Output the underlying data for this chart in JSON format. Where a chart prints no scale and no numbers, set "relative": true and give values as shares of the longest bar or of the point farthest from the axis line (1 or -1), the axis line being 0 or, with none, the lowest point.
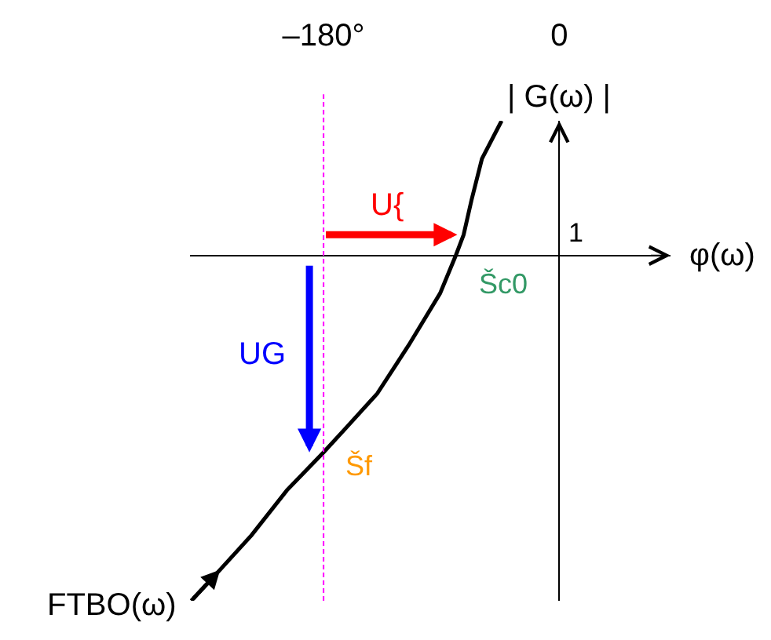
{
  "chart_data": {
    "type": "line",
    "xlabel": "φ(ω)",
    "ylabel": "| G(ω) |",
    "relative": true,
    "xlim": [
      -282,
      85
    ],
    "xticks": [
      {
        "value": -180,
        "label": "–180°"
      },
      0
    ],
    "series": [
      {
        "name": "FTBO(ω)",
        "color": "#000000",
        "x": [
          -281,
          -259,
          -235,
          -208,
          -180,
          -163,
          -139,
          -115,
          -91,
          -79,
          -73,
          -70,
          -67,
          -59,
          -44
        ],
        "values": [
          -1.0,
          -0.91,
          -0.81,
          -0.68,
          -0.57,
          -0.5,
          -0.4,
          -0.26,
          -0.11,
          0.0,
          0.06,
          0.11,
          0.16,
          0.28,
          0.39
        ]
      }
    ],
    "ref_lines": [
      {
        "axis": "x",
        "value": -180,
        "color": "#ff00ff",
        "line_style": "dashed"
      }
    ],
    "annotations": [
      {
        "text": "U{",
        "x": -73,
        "y": 0.06
      },
      {
        "text": "UG",
        "x": -180,
        "y": -0.57
      },
      {
        "text": "Šc0",
        "x": -79,
        "y": 0
      },
      {
        "text": "Šf",
        "x": -180,
        "y": -0.57
      },
      "1"
    ]
  }
}
